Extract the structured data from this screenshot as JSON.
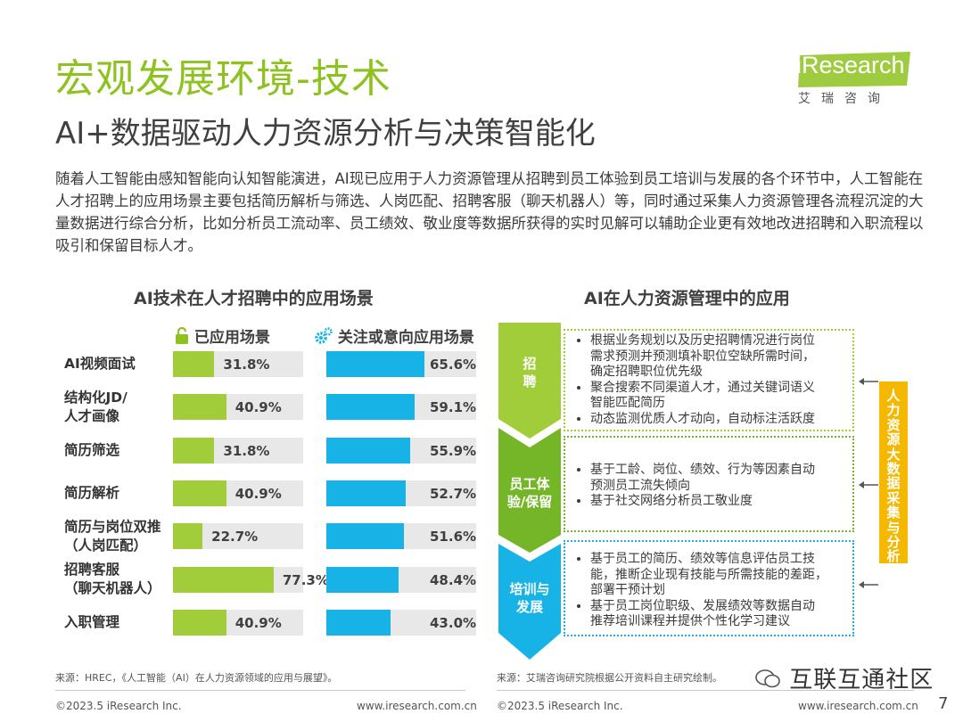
{
  "header": {
    "title": "宏观发展环境-技术",
    "subtitle": "AI+数据驱动人力资源分析与决策智能化",
    "logo_text": "iResearch",
    "logo_subtext": "艾瑞咨询"
  },
  "intro": "随着人工智能由感知智能向认知智能演进，AI现已应用于人力资源管理从招聘到员工体验到员工培训与发展的各个环节中，人工智能在人才招聘上的应用场景主要包括简历解析与筛选、人岗匹配、招聘客服（聊天机器人）等，同时通过采集人力资源管理各流程沉淀的大量数据进行综合分析，比如分析员工流动率、员工绩效、敬业度等数据所获得的实时见解可以辅助企业更有效地改进招聘和入职流程以吸引和保留目标人才。",
  "chart_data": {
    "type": "bar",
    "orientation": "horizontal",
    "title": "AI技术在人才招聘中的应用场景",
    "categories": [
      [
        "AI视频面试"
      ],
      [
        "结构化JD/",
        "人才画像"
      ],
      [
        "简历筛选"
      ],
      [
        "简历解析"
      ],
      [
        "简历与岗位双推",
        "（人岗匹配）"
      ],
      [
        "招聘客服",
        "（聊天机器人）"
      ],
      [
        "入职管理"
      ]
    ],
    "series": [
      {
        "name": "已应用场景",
        "values": [
          31.8,
          40.9,
          31.8,
          40.9,
          22.7,
          77.3,
          40.9
        ],
        "labels": [
          "31.8%",
          "40.9%",
          "31.8%",
          "40.9%",
          "22.7%",
          "77.3%",
          "40.9%"
        ],
        "color": "#a2cd3a"
      },
      {
        "name": "关注或意向应用场景",
        "values": [
          65.6,
          59.1,
          55.9,
          52.7,
          51.6,
          48.4,
          43.0
        ],
        "labels": [
          "65.6%",
          "59.1%",
          "55.9%",
          "52.7%",
          "51.6%",
          "48.4%",
          "43.0%"
        ],
        "color": "#18b3e6"
      }
    ],
    "xlim": [
      0,
      100
    ],
    "unit": "%"
  },
  "right_panel": {
    "title": "AI在人力资源管理中的应用",
    "stages": [
      {
        "label": [
          "招",
          "聘"
        ],
        "color": "#a2cd3a",
        "border": "#a2cd3a",
        "items": [
          [
            "根据业务规划以及历史招聘情况进行岗位",
            "需求预测并预测填补职位空缺所需时间，",
            "确定招聘职位优先级"
          ],
          [
            "聚合搜索不同渠道人才，通过关键词语义",
            "智能匹配简历"
          ],
          [
            "动态监测优质人才动向，自动标注活跃度"
          ]
        ]
      },
      {
        "label": [
          "员工体",
          "验/保留"
        ],
        "color": "#74b628",
        "border": "#74b628",
        "items": [
          [
            "基于工龄、岗位、绩效、行为等因素自动",
            "预测员工流失倾向"
          ],
          [
            "基于社交网络分析员工敬业度"
          ]
        ]
      },
      {
        "label": [
          "培训与",
          "发展"
        ],
        "color": "#18b3e6",
        "border": "#18b3e6",
        "items": [
          [
            "基于员工的简历、绩效等信息评估员工技",
            "能，推断企业现有技能与所需技能的差距，",
            "部署干预计划"
          ],
          [
            "基于员工岗位职级、发展绩效等数据自动",
            "推荐培训课程并提供个性化学习建议"
          ]
        ]
      }
    ],
    "side_label": "人力资源大数据采集与分析",
    "side_color": "#f5b800"
  },
  "sources": {
    "left": "来源：HREC，《人工智能（AI）在人力资源领域的应用与展望》。",
    "right": "来源：艾瑞咨询研究院根据公开资料自主研究绘制。"
  },
  "watermark": "互联互通社区",
  "footer": {
    "copyright": "©2023.5 iResearch Inc.",
    "url": "www.iresearch.com.cn",
    "page": "7"
  },
  "colors": {
    "brand_green": "#8dc21f",
    "bar_green": "#a2cd3a",
    "bar_blue": "#18b3e6",
    "accent_yellow": "#f5b800"
  }
}
